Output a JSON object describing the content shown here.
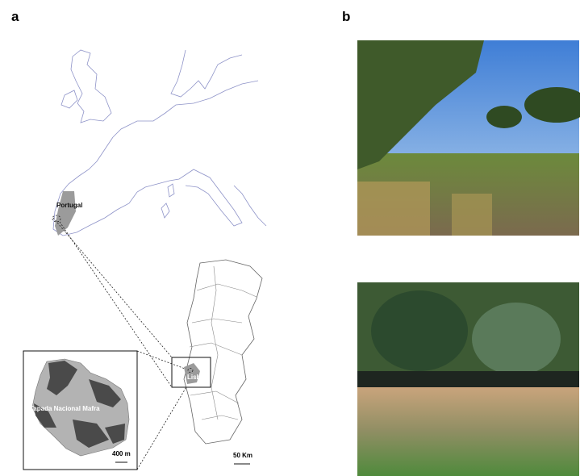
{
  "panel_a": {
    "label": "a",
    "map": {
      "country_label": "Portugal",
      "city_label": "Lisbon",
      "inset_label": "Tapada Nacional Mafra",
      "inset_scale": "400 m",
      "portugal_scale": "50 Km"
    }
  },
  "panel_b": {
    "label": "b"
  }
}
